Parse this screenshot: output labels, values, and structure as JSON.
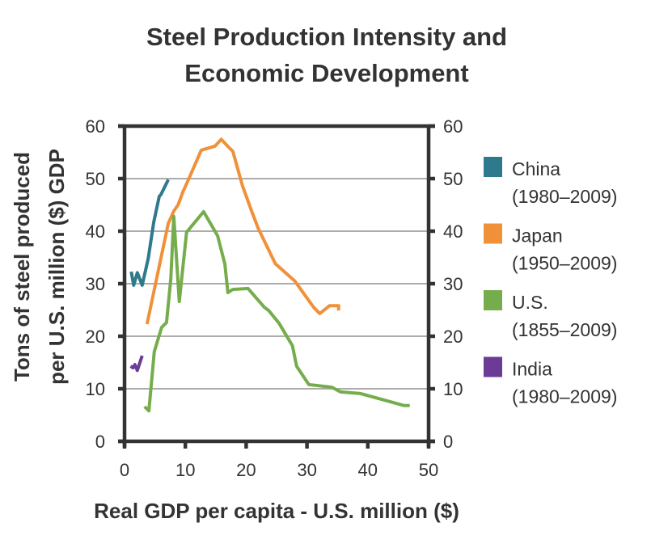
{
  "chart_data": {
    "type": "line",
    "title": [
      "Steel Production Intensity and",
      "Economic Development"
    ],
    "xlabel": "Real GDP per capita -  U.S. million ($)",
    "ylabel": [
      "Tons of steel produced",
      "per U.S. million ($) GDP"
    ],
    "xlim": [
      0,
      50
    ],
    "ylim": [
      0,
      60
    ],
    "x_ticks": [
      0,
      10,
      20,
      30,
      40,
      50
    ],
    "y_ticks": [
      0,
      10,
      20,
      30,
      40,
      50,
      60
    ],
    "y_ticks_right": [
      0,
      10,
      20,
      30,
      40,
      50,
      60
    ],
    "grid": "horizontal",
    "legend_position": "right",
    "series": [
      {
        "name": "China",
        "period": "(1980–2009)",
        "color": "#2e7a8c",
        "points": [
          [
            1.1,
            32.3
          ],
          [
            1.5,
            29.7
          ],
          [
            2.1,
            32.1
          ],
          [
            2.9,
            29.7
          ],
          [
            3.9,
            34.8
          ],
          [
            4.8,
            41.7
          ],
          [
            5.7,
            46.6
          ],
          [
            6.0,
            47.0
          ],
          [
            7.2,
            49.8
          ]
        ]
      },
      {
        "name": "Japan",
        "period": "(1950–2009)",
        "color": "#f0913a",
        "points": [
          [
            3.7,
            22.3
          ],
          [
            7.2,
            41.5
          ],
          [
            8.1,
            43.8
          ],
          [
            8.8,
            45.0
          ],
          [
            9.6,
            47.5
          ],
          [
            10.5,
            49.8
          ],
          [
            12.6,
            55.4
          ],
          [
            14.9,
            56.2
          ],
          [
            15.9,
            57.5
          ],
          [
            17.1,
            56.0
          ],
          [
            17.8,
            55.2
          ],
          [
            19.4,
            48.6
          ],
          [
            20.9,
            43.8
          ],
          [
            22.0,
            40.5
          ],
          [
            24.8,
            33.8
          ],
          [
            28.0,
            30.5
          ],
          [
            31.1,
            25.5
          ],
          [
            32.1,
            24.3
          ],
          [
            33.7,
            25.8
          ],
          [
            35.2,
            25.8
          ],
          [
            35.2,
            24.9
          ]
        ]
      },
      {
        "name": "U.S.",
        "period": "(1855–2009)",
        "color": "#76ad4c",
        "points": [
          [
            3.3,
            6.6
          ],
          [
            4.0,
            5.8
          ],
          [
            4.9,
            17.1
          ],
          [
            6.1,
            21.7
          ],
          [
            6.9,
            22.6
          ],
          [
            7.6,
            30.9
          ],
          [
            8.1,
            42.8
          ],
          [
            9.0,
            26.6
          ],
          [
            10.2,
            39.8
          ],
          [
            13.0,
            43.7
          ],
          [
            15.3,
            39.1
          ],
          [
            16.5,
            33.7
          ],
          [
            17.0,
            28.3
          ],
          [
            17.8,
            28.9
          ],
          [
            20.3,
            29.1
          ],
          [
            23.0,
            25.5
          ],
          [
            23.7,
            24.9
          ],
          [
            25.4,
            22.5
          ],
          [
            27.6,
            18.2
          ],
          [
            28.3,
            14.3
          ],
          [
            30.3,
            10.8
          ],
          [
            34.1,
            10.3
          ],
          [
            35.5,
            9.4
          ],
          [
            38.8,
            9.1
          ],
          [
            41.6,
            8.2
          ],
          [
            46.0,
            6.8
          ],
          [
            46.9,
            6.8
          ]
        ]
      },
      {
        "name": "India",
        "period": "(1980–2009)",
        "color": "#6c3b96",
        "points": [
          [
            1.0,
            14.3
          ],
          [
            1.4,
            14.0
          ],
          [
            1.7,
            14.6
          ],
          [
            2.1,
            13.5
          ],
          [
            2.9,
            16.3
          ]
        ]
      }
    ]
  }
}
